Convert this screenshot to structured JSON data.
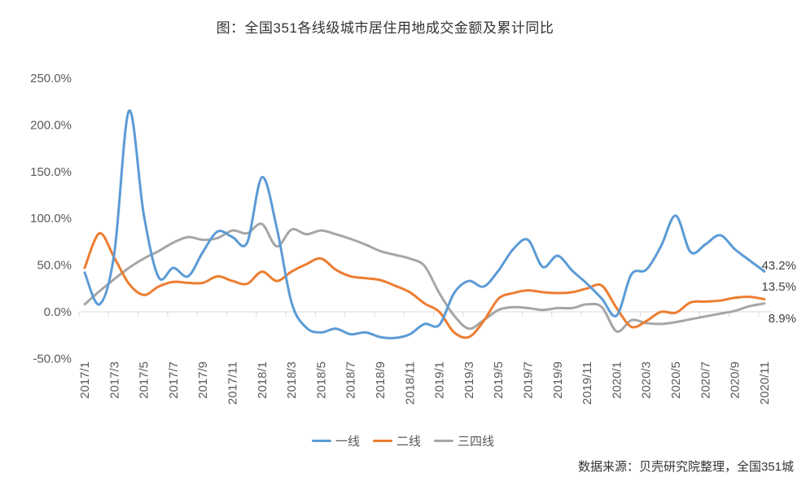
{
  "chart_data": {
    "type": "line",
    "title": "图：全国351各线级城市居住用地成交金额及累计同比",
    "source_note": "数据来源：贝壳研究院整理，全国351城",
    "x": [
      "2017/1",
      "2017/2",
      "2017/3",
      "2017/4",
      "2017/5",
      "2017/6",
      "2017/7",
      "2017/8",
      "2017/9",
      "2017/10",
      "2017/11",
      "2017/12",
      "2018/1",
      "2018/2",
      "2018/3",
      "2018/4",
      "2018/5",
      "2018/6",
      "2018/7",
      "2018/8",
      "2018/9",
      "2018/10",
      "2018/11",
      "2018/12",
      "2019/1",
      "2019/2",
      "2019/3",
      "2019/4",
      "2019/5",
      "2019/6",
      "2019/7",
      "2019/8",
      "2019/9",
      "2019/10",
      "2019/11",
      "2019/12",
      "2020/1",
      "2020/2",
      "2020/3",
      "2020/4",
      "2020/5",
      "2020/6",
      "2020/7",
      "2020/8",
      "2020/9",
      "2020/10",
      "2020/11"
    ],
    "x_tick_step": 2,
    "ylim": [
      -50,
      250
    ],
    "y_tick_labels": [
      "250.0%",
      "200.0%",
      "150.0%",
      "100.0%",
      "50.0%",
      "0.0%",
      "-50.0%"
    ],
    "y_tick_values": [
      250,
      200,
      150,
      100,
      50,
      0,
      -50
    ],
    "grid": false,
    "smoothed_lines": true,
    "legend_position": "bottom",
    "series": [
      {
        "name": "一线",
        "color": "#5B9BD5",
        "end_label": "43.2%",
        "values": [
          42,
          8,
          62,
          215,
          104,
          37,
          47,
          38,
          64,
          86,
          80,
          74,
          144,
          90,
          10,
          -17,
          -22,
          -18,
          -24,
          -22,
          -27,
          -28,
          -24,
          -13,
          -14,
          20,
          33,
          27,
          44,
          67,
          77,
          48,
          60,
          44,
          30,
          14,
          -4,
          40,
          45,
          70,
          103,
          64,
          72,
          82,
          67,
          55,
          43.2
        ]
      },
      {
        "name": "二线",
        "color": "#ED7D31",
        "end_label": "13.5%",
        "values": [
          47,
          84,
          58,
          30,
          18,
          27,
          32,
          31,
          31,
          38,
          33,
          30,
          43,
          33,
          43,
          51,
          57,
          45,
          38,
          36,
          34,
          28,
          21,
          9,
          0,
          -22,
          -27,
          -10,
          14,
          20,
          23,
          21,
          20,
          21,
          25,
          28,
          4,
          -16,
          -10,
          0,
          -1,
          10,
          11,
          12,
          15,
          16,
          13.5
        ]
      },
      {
        "name": "三四线",
        "color": "#A6A6A6",
        "end_label": "8.9%",
        "values": [
          8,
          22,
          35,
          47,
          57,
          65,
          74,
          80,
          77,
          79,
          87,
          84,
          94,
          70,
          88,
          83,
          87,
          83,
          78,
          72,
          65,
          61,
          57,
          49,
          20,
          -4,
          -18,
          -9,
          2,
          5,
          4,
          2,
          4,
          4,
          8,
          5,
          -21,
          -9,
          -12,
          -13,
          -11,
          -8,
          -5,
          -2,
          1,
          6,
          8.9
        ]
      }
    ]
  },
  "colors": {
    "axis_line": "#D9D9D9",
    "tick_text": "#595959",
    "title_text": "#333333",
    "end_label_text": "#404040"
  }
}
